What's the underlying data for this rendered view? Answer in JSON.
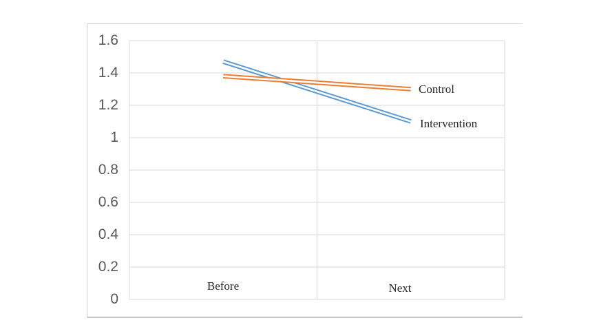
{
  "window": {
    "background": "#ffffff"
  },
  "chart_data": {
    "type": "line",
    "title": "",
    "categories": [
      "Before",
      "Next"
    ],
    "series": [
      {
        "name": "Intervention",
        "label": "Intervention",
        "color": "#5B9BD5",
        "values": [
          1.47,
          1.1
        ]
      },
      {
        "name": "Control",
        "label": "Control",
        "color": "#ED7D31",
        "values": [
          1.38,
          1.3
        ]
      }
    ],
    "xlabel": "",
    "ylabel": "",
    "ylim": [
      0,
      1.6
    ],
    "yticks": [
      0,
      0.2,
      0.4,
      0.6,
      0.8,
      1,
      1.2,
      1.4,
      1.6
    ],
    "ytick_labels": [
      "0",
      "0.2",
      "0.4",
      "0.6",
      "0.8",
      "1",
      "1.2",
      "1.4",
      "1.6"
    ],
    "grid": true,
    "legend_position": "labels-at-line-ends",
    "line_style": "double-line",
    "label_placement": {
      "categories": "inside-plot-above-bottom-axis",
      "series": "right-of-line-end"
    }
  },
  "colors": {
    "gridline": "#dadada",
    "chart_border": "#d2d2d2",
    "tick_label": "#595959",
    "text_label": "#262626",
    "line_gap": "#ffffff",
    "background": "#ffffff"
  }
}
